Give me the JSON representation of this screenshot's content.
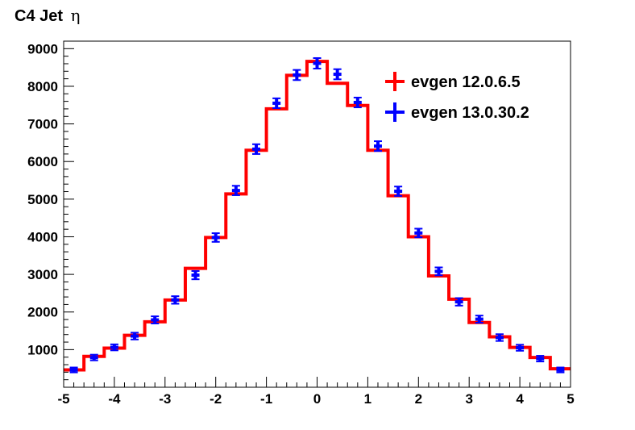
{
  "chart_data": {
    "type": "line",
    "title": "C4 Jet",
    "title_symbol": "η",
    "xlabel": "",
    "ylabel": "",
    "xlim": [
      -5,
      5
    ],
    "ylim": [
      0,
      9200
    ],
    "grid": false,
    "legend_position": "top-right",
    "x_ticks": [
      -5,
      -4,
      -3,
      -2,
      -1,
      0,
      1,
      2,
      3,
      4,
      5
    ],
    "x_tick_labels": [
      "-5",
      "-4",
      "-3",
      "-2",
      "-1",
      "0",
      "1",
      "2",
      "3",
      "4",
      "5"
    ],
    "y_ticks": [
      1000,
      2000,
      3000,
      4000,
      5000,
      6000,
      7000,
      8000,
      9000
    ],
    "y_tick_labels": [
      "1000",
      "2000",
      "3000",
      "4000",
      "5000",
      "6000",
      "7000",
      "8000",
      "9000"
    ],
    "bin_edges": [
      -5.0,
      -4.6,
      -4.2,
      -3.8,
      -3.4,
      -3.0,
      -2.6,
      -2.2,
      -1.8,
      -1.4,
      -1.0,
      -0.6,
      -0.2,
      0.2,
      0.6,
      1.0,
      1.4,
      1.8,
      2.2,
      2.6,
      3.0,
      3.4,
      3.8,
      4.2,
      4.6,
      5.0
    ],
    "x": [
      -4.8,
      -4.4,
      -4.0,
      -3.6,
      -3.2,
      -2.8,
      -2.4,
      -2.0,
      -1.6,
      -1.2,
      -0.8,
      -0.4,
      0.0,
      0.4,
      0.8,
      1.2,
      1.6,
      2.0,
      2.4,
      2.8,
      3.2,
      3.6,
      4.0,
      4.4,
      4.8
    ],
    "series": [
      {
        "name": "evgen 12.0.6.5",
        "style": "step-histogram",
        "color": "#ff0000",
        "values": [
          460,
          820,
          1040,
          1380,
          1740,
          2320,
          3160,
          3980,
          5140,
          6300,
          7400,
          8290,
          8660,
          8080,
          7490,
          6300,
          5090,
          4000,
          2960,
          2340,
          1720,
          1340,
          1060,
          790,
          490
        ]
      },
      {
        "name": "evgen 13.0.30.2",
        "style": "error-bars",
        "color": "#0000ff",
        "values": [
          460,
          790,
          1060,
          1360,
          1790,
          2320,
          2980,
          3980,
          5230,
          6330,
          7550,
          8300,
          8610,
          8320,
          7570,
          6410,
          5210,
          4100,
          3080,
          2270,
          1810,
          1320,
          1050,
          760,
          460
        ],
        "errors": [
          65,
          75,
          80,
          90,
          95,
          100,
          110,
          115,
          125,
          130,
          130,
          135,
          140,
          135,
          130,
          130,
          125,
          115,
          105,
          100,
          95,
          90,
          80,
          75,
          65
        ]
      }
    ]
  }
}
